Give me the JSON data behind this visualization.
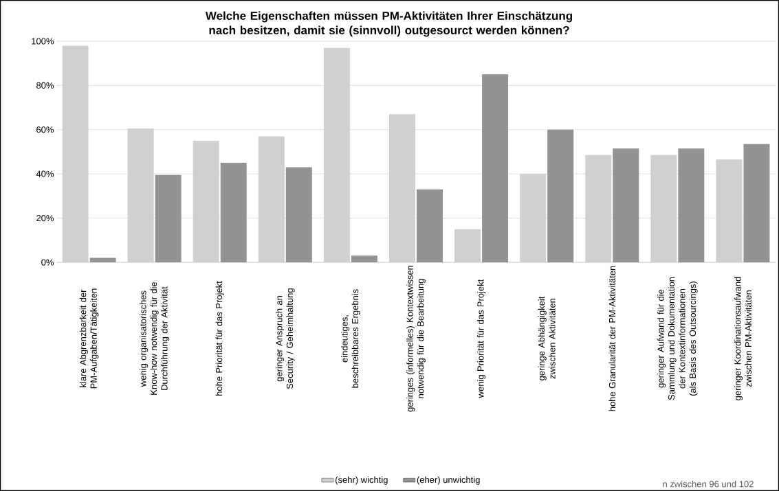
{
  "chart_data": {
    "type": "bar",
    "title": "Welche Eigenschaften müssen PM-Aktivitäten Ihrer Einschätzung nach besitzen, damit sie (sinnvoll) outgesourct werden können?",
    "categories": [
      "klare Abgrenzbarkeit der PM-Aufgaben/Tätigkeiten",
      "wenig organisatorisches Know-how notwendig für die Durchführung der Aktivität",
      "hohe Priorität für das Projekt",
      "geringer Anspruch an Security / Geheimhaltung",
      "eindeutiges, beschreibbares Ergebnis",
      "geringes (informelles)  Kontextwissen notwendig für die Bearbeitung",
      "wenig Priorität für das Projekt",
      "geringe Abhängigkeit zwischen Aktivitäten",
      "hohe Granularität der PM-Aktivitäten",
      "geringer Aufwand für die Sammlung und Dokumentation der Kontextinformationen (als Basis des Outsourcings)",
      "geringer Koordinationsaufwand zwischen PM-Aktivitäten"
    ],
    "series": [
      {
        "name": "(sehr) wichtig",
        "color": "#d0d0d2",
        "values": [
          98,
          60.5,
          55,
          57,
          97,
          67,
          15,
          40,
          48.5,
          48.5,
          46.5
        ]
      },
      {
        "name": "(eher) unwichtig",
        "color": "#939396",
        "values": [
          2,
          39.5,
          45,
          43,
          3,
          33,
          85,
          60,
          51.5,
          51.5,
          53.5
        ]
      }
    ],
    "ylim": [
      0,
      100
    ],
    "yticks": [
      {
        "value": 0,
        "label": "0%"
      },
      {
        "value": 20,
        "label": "20%"
      },
      {
        "value": 40,
        "label": "40%"
      },
      {
        "value": 60,
        "label": "60%"
      },
      {
        "value": 80,
        "label": "80%"
      },
      {
        "value": 100,
        "label": "100%"
      }
    ],
    "grid": "y",
    "legend": "bottom",
    "annotations": [
      "n zwischen 96 und 102"
    ]
  }
}
